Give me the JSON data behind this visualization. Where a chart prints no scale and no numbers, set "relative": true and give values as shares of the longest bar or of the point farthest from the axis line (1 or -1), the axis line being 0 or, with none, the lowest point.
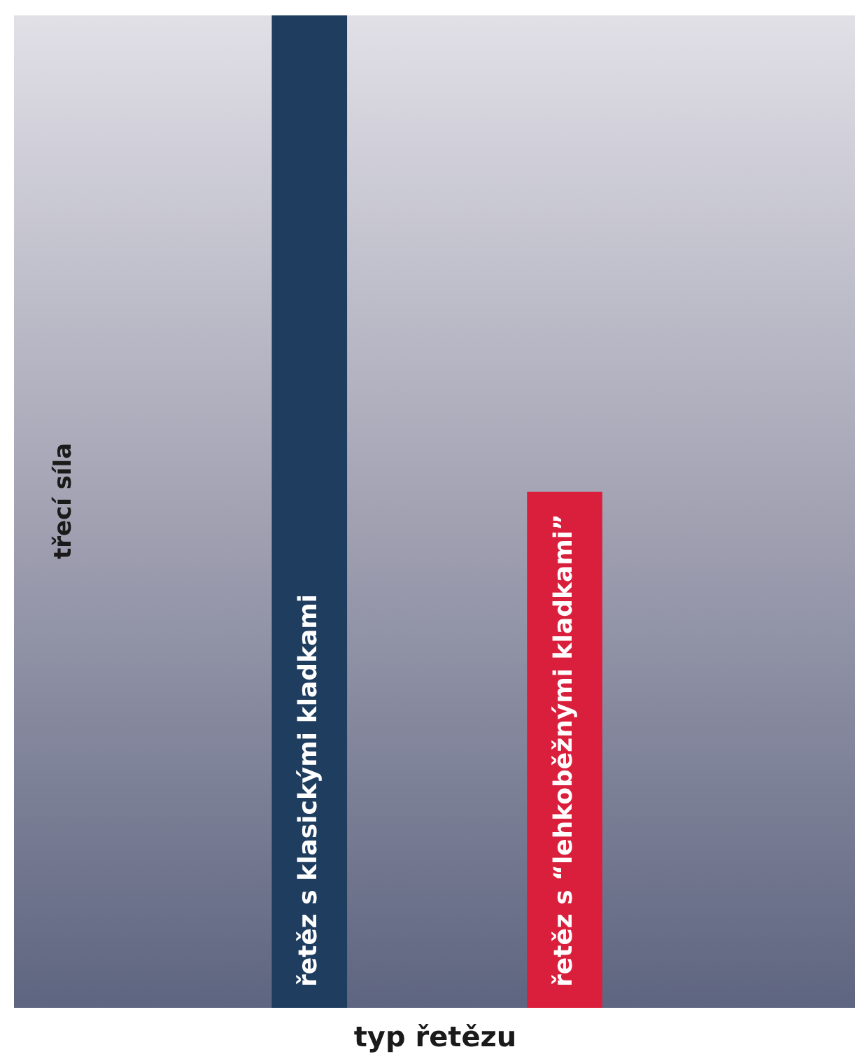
{
  "chart_data": {
    "type": "bar",
    "xlabel": "typ řetězu",
    "ylabel": "třecí síla",
    "categories": [
      "řetěz s klasickými kladkami",
      "řetěz s “lehkoběžnými kladkami”"
    ],
    "values": [
      1,
      0.52
    ],
    "colors": [
      "#1f3d5f",
      "#da1f3c"
    ],
    "relative": true,
    "grid": false
  }
}
